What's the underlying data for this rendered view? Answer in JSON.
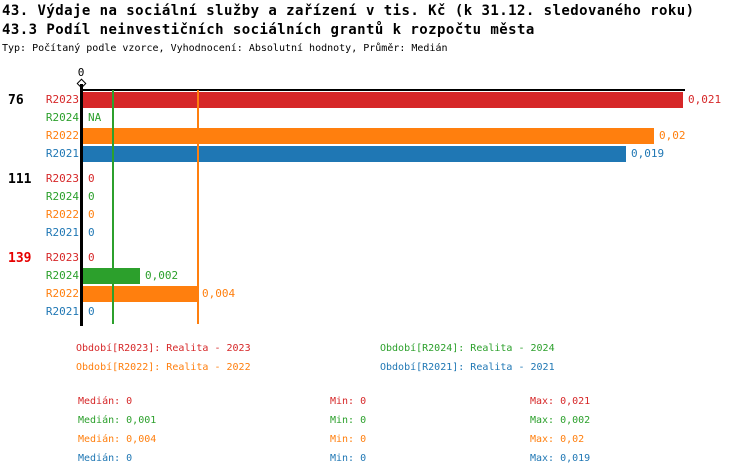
{
  "header": {
    "title_line1": "43. Výdaje na sociální služby a zařízení v tis. Kč (k 31.12. sledovaného roku)",
    "title_line2": "43.3 Podíl neinvestičních sociálních grantů k rozpočtu města",
    "meta": "Typ: Počítaný podle vzorce, Vyhodnocení: Absolutní hodnoty, Průměr: Medián"
  },
  "colors": {
    "red": "#d62728",
    "green": "#2ca02c",
    "orange": "#ff7f0e",
    "blue": "#1f77b4",
    "alert": "#e60000",
    "black": "#000000"
  },
  "chart_data": {
    "type": "bar",
    "orientation": "horizontal",
    "axis": {
      "tick_label": "0",
      "min": 0,
      "max": 0.021,
      "grid": false
    },
    "series_legend_position": "bottom",
    "groups": [
      {
        "label": "76",
        "label_color": "black",
        "rows": [
          {
            "series": "R2023",
            "color": "red",
            "value": 0.021,
            "display": "0,021"
          },
          {
            "series": "R2024",
            "color": "green",
            "value": null,
            "display": "NA"
          },
          {
            "series": "R2022",
            "color": "orange",
            "value": 0.02,
            "display": "0,02"
          },
          {
            "series": "R2021",
            "color": "blue",
            "value": 0.019,
            "display": "0,019"
          }
        ]
      },
      {
        "label": "111",
        "label_color": "black",
        "rows": [
          {
            "series": "R2023",
            "color": "red",
            "value": 0,
            "display": "0"
          },
          {
            "series": "R2024",
            "color": "green",
            "value": 0,
            "display": "0"
          },
          {
            "series": "R2022",
            "color": "orange",
            "value": 0,
            "display": "0"
          },
          {
            "series": "R2021",
            "color": "blue",
            "value": 0,
            "display": "0"
          }
        ]
      },
      {
        "label": "139",
        "label_color": "alert",
        "rows": [
          {
            "series": "R2023",
            "color": "red",
            "value": 0,
            "display": "0"
          },
          {
            "series": "R2024",
            "color": "green",
            "value": 0.002,
            "display": "0,002"
          },
          {
            "series": "R2022",
            "color": "orange",
            "value": 0.004,
            "display": "0,004"
          },
          {
            "series": "R2021",
            "color": "blue",
            "value": 0,
            "display": "0"
          }
        ]
      }
    ],
    "median_lines": [
      {
        "series": "R2024",
        "color": "green",
        "value": 0.001
      },
      {
        "series": "R2022",
        "color": "orange",
        "value": 0.004
      }
    ]
  },
  "legend": [
    {
      "series": "R2023",
      "color": "red",
      "column": 0,
      "row": 0,
      "label": "Období[R2023]: Realita - 2023"
    },
    {
      "series": "R2024",
      "color": "green",
      "column": 1,
      "row": 0,
      "label": "Období[R2024]: Realita - 2024"
    },
    {
      "series": "R2022",
      "color": "orange",
      "column": 0,
      "row": 1,
      "label": "Období[R2022]: Realita - 2022"
    },
    {
      "series": "R2021",
      "color": "blue",
      "column": 1,
      "row": 1,
      "label": "Období[R2021]: Realita - 2021"
    }
  ],
  "stats": [
    {
      "series": "R2023",
      "color": "red",
      "median_label": "Medián: 0",
      "min_label": "Min: 0",
      "max_label": "Max: 0,021"
    },
    {
      "series": "R2024",
      "color": "green",
      "median_label": "Medián: 0,001",
      "min_label": "Min: 0",
      "max_label": "Max: 0,002"
    },
    {
      "series": "R2022",
      "color": "orange",
      "median_label": "Medián: 0,004",
      "min_label": "Min: 0",
      "max_label": "Max: 0,02"
    },
    {
      "series": "R2021",
      "color": "blue",
      "median_label": "Medián: 0",
      "min_label": "Min: 0",
      "max_label": "Max: 0,019"
    }
  ]
}
